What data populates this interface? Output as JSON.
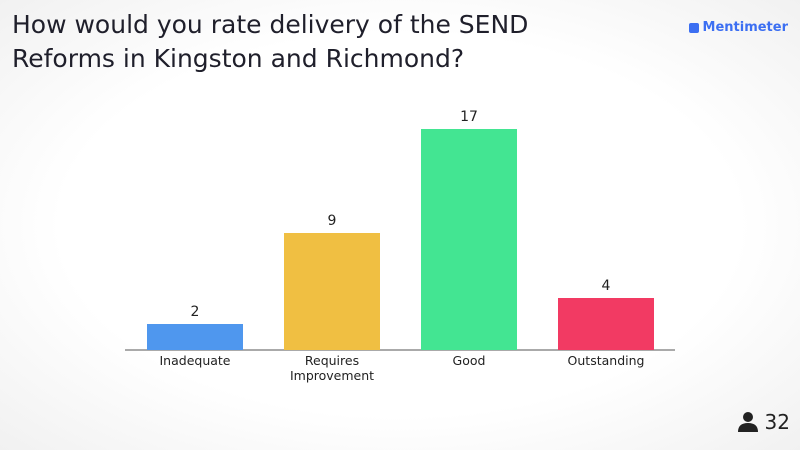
{
  "brand": "Mentimeter",
  "participants": 32,
  "chart_data": {
    "type": "bar",
    "title": "How would you rate delivery of the SEND Reforms in Kingston and Richmond?",
    "categories": [
      "Inadequate",
      "Requires Improvement",
      "Good",
      "Outstanding"
    ],
    "values": [
      2,
      9,
      17,
      4
    ],
    "colors": [
      "#4f97ee",
      "#f0bf42",
      "#43e592",
      "#f23a63"
    ]
  }
}
